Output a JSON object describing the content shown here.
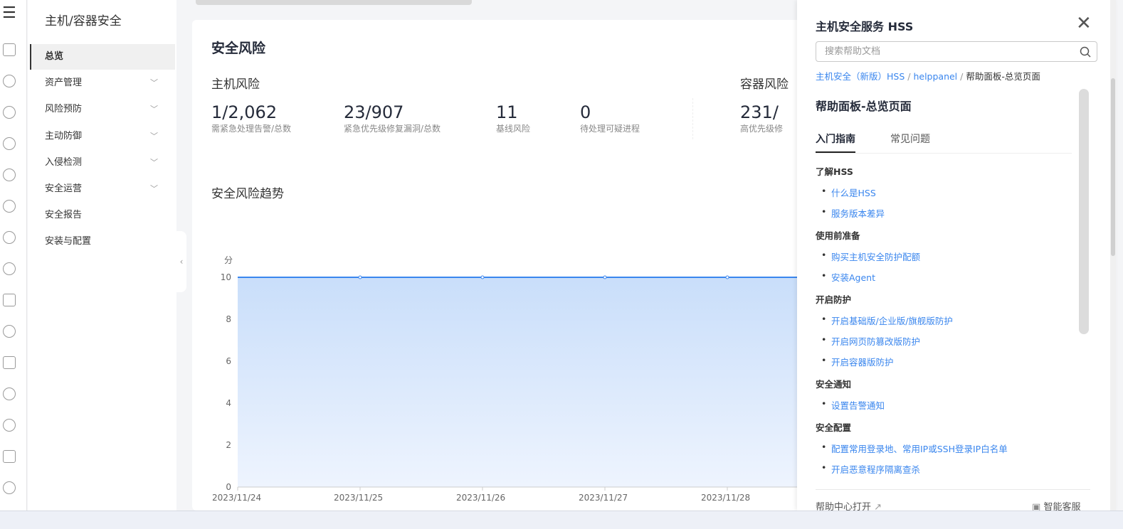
{
  "nav": {
    "title": "主机/容器安全",
    "items": [
      {
        "label": "总览",
        "active": true,
        "expandable": false
      },
      {
        "label": "资产管理",
        "expandable": true
      },
      {
        "label": "风险预防",
        "expandable": true
      },
      {
        "label": "主动防御",
        "expandable": true
      },
      {
        "label": "入侵检测",
        "expandable": true
      },
      {
        "label": "安全运营",
        "expandable": true
      },
      {
        "label": "安全报告",
        "expandable": false
      },
      {
        "label": "安装与配置",
        "expandable": false
      }
    ]
  },
  "main": {
    "title": "安全风险",
    "host_risk": {
      "title": "主机风险",
      "stats": [
        {
          "highlight": "1",
          "sep": "/",
          "total": "2,062",
          "label": "需紧急处理告警/总数"
        },
        {
          "highlight": "23",
          "sep": "/",
          "total": "907",
          "label": "紧急优先级修复漏洞/总数"
        },
        {
          "value": "11",
          "label": "基线风险"
        },
        {
          "value": "0",
          "label": "待处理可疑进程"
        }
      ]
    },
    "container_risk": {
      "title": "容器风险",
      "highlight": "231",
      "sep": "/",
      "label": "高优先级修"
    },
    "trend_title": "安全风险趋势"
  },
  "chart_data": {
    "type": "area",
    "ylabel": "分",
    "ylim": [
      0,
      10
    ],
    "yticks": [
      0,
      2,
      4,
      6,
      8,
      10
    ],
    "categories": [
      "2023/11/24",
      "2023/11/25",
      "2023/11/26",
      "2023/11/27",
      "2023/11/28"
    ],
    "values": [
      10,
      10,
      10,
      10,
      10
    ],
    "grid": true,
    "color": "#3a86ee"
  },
  "panel": {
    "title": "主机安全服务 HSS",
    "search_placeholder": "搜索帮助文档",
    "breadcrumb": [
      "主机安全（新版）HSS",
      "helppanel",
      "帮助面板-总览页面"
    ],
    "page_title": "帮助面板-总览页面",
    "tabs": [
      {
        "label": "入门指南",
        "active": true
      },
      {
        "label": "常见问题"
      }
    ],
    "sections": [
      {
        "title": "了解HSS",
        "links": [
          "什么是HSS",
          "服务版本差异"
        ]
      },
      {
        "title": "使用前准备",
        "links": [
          "购买主机安全防护配额",
          "安装Agent"
        ]
      },
      {
        "title": "开启防护",
        "links": [
          "开启基础版/企业版/旗舰版防护",
          "开启网页防篡改版防护",
          "开启容器版防护"
        ]
      },
      {
        "title": "安全通知",
        "links": [
          "设置告警通知"
        ]
      },
      {
        "title": "安全配置",
        "links": [
          "配置常用登录地、常用IP或SSH登录IP白名单",
          "开启恶意程序隔离查杀"
        ]
      }
    ],
    "footer_open": "帮助中心打开",
    "footer_bot": "智能客服"
  }
}
